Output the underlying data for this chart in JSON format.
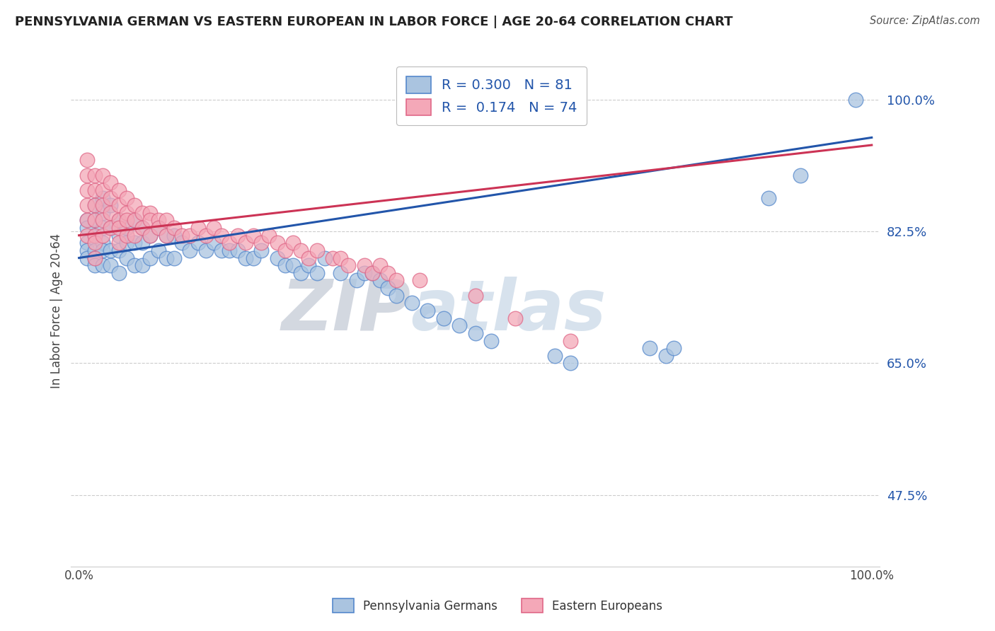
{
  "title": "PENNSYLVANIA GERMAN VS EASTERN EUROPEAN IN LABOR FORCE | AGE 20-64 CORRELATION CHART",
  "source": "Source: ZipAtlas.com",
  "ylabel": "In Labor Force | Age 20-64",
  "blue_R": 0.3,
  "blue_N": 81,
  "pink_R": 0.174,
  "pink_N": 74,
  "blue_fill": "#aac4e0",
  "pink_fill": "#f4a8b8",
  "blue_edge": "#5588cc",
  "pink_edge": "#e06888",
  "blue_line_color": "#2255aa",
  "pink_line_color": "#cc3355",
  "legend_blue_label": "Pennsylvania Germans",
  "legend_pink_label": "Eastern Europeans",
  "background_color": "#ffffff",
  "grid_color": "#cccccc",
  "watermark_zip": "ZIP",
  "watermark_atlas": "atlas",
  "title_color": "#222222",
  "source_color": "#555555",
  "axis_label_color": "#444444",
  "right_tick_color": "#2255aa",
  "ytick_vals": [
    0.475,
    0.65,
    0.825,
    1.0
  ],
  "ytick_labels": [
    "47.5%",
    "65.0%",
    "82.5%",
    "100.0%"
  ],
  "ylim_low": 0.38,
  "ylim_high": 1.06,
  "xlim_low": -0.01,
  "xlim_high": 1.01,
  "blue_trend_x0": 0.0,
  "blue_trend_x1": 1.0,
  "blue_trend_y0": 0.79,
  "blue_trend_y1": 0.95,
  "pink_trend_x0": 0.0,
  "pink_trend_x1": 1.0,
  "pink_trend_y0": 0.82,
  "pink_trend_y1": 0.94,
  "blue_x": [
    0.01,
    0.01,
    0.01,
    0.01,
    0.01,
    0.02,
    0.02,
    0.02,
    0.02,
    0.02,
    0.02,
    0.03,
    0.03,
    0.03,
    0.03,
    0.03,
    0.03,
    0.04,
    0.04,
    0.04,
    0.04,
    0.05,
    0.05,
    0.05,
    0.05,
    0.06,
    0.06,
    0.06,
    0.07,
    0.07,
    0.07,
    0.08,
    0.08,
    0.08,
    0.09,
    0.09,
    0.1,
    0.1,
    0.11,
    0.11,
    0.12,
    0.12,
    0.13,
    0.14,
    0.15,
    0.16,
    0.17,
    0.18,
    0.19,
    0.2,
    0.21,
    0.22,
    0.23,
    0.25,
    0.26,
    0.27,
    0.28,
    0.29,
    0.3,
    0.31,
    0.33,
    0.35,
    0.36,
    0.37,
    0.38,
    0.39,
    0.4,
    0.42,
    0.44,
    0.46,
    0.48,
    0.5,
    0.52,
    0.6,
    0.62,
    0.72,
    0.74,
    0.75,
    0.87,
    0.91,
    0.98
  ],
  "blue_y": [
    0.84,
    0.83,
    0.81,
    0.8,
    0.79,
    0.86,
    0.84,
    0.82,
    0.8,
    0.79,
    0.78,
    0.87,
    0.85,
    0.83,
    0.81,
    0.8,
    0.78,
    0.86,
    0.83,
    0.8,
    0.78,
    0.84,
    0.82,
    0.8,
    0.77,
    0.83,
    0.81,
    0.79,
    0.84,
    0.81,
    0.78,
    0.83,
    0.81,
    0.78,
    0.82,
    0.79,
    0.83,
    0.8,
    0.82,
    0.79,
    0.82,
    0.79,
    0.81,
    0.8,
    0.81,
    0.8,
    0.81,
    0.8,
    0.8,
    0.8,
    0.79,
    0.79,
    0.8,
    0.79,
    0.78,
    0.78,
    0.77,
    0.78,
    0.77,
    0.79,
    0.77,
    0.76,
    0.77,
    0.77,
    0.76,
    0.75,
    0.74,
    0.73,
    0.72,
    0.71,
    0.7,
    0.69,
    0.68,
    0.66,
    0.65,
    0.67,
    0.66,
    0.67,
    0.87,
    0.9,
    1.0
  ],
  "pink_x": [
    0.01,
    0.01,
    0.01,
    0.01,
    0.01,
    0.01,
    0.02,
    0.02,
    0.02,
    0.02,
    0.02,
    0.02,
    0.02,
    0.03,
    0.03,
    0.03,
    0.03,
    0.03,
    0.04,
    0.04,
    0.04,
    0.04,
    0.05,
    0.05,
    0.05,
    0.05,
    0.05,
    0.06,
    0.06,
    0.06,
    0.06,
    0.07,
    0.07,
    0.07,
    0.08,
    0.08,
    0.09,
    0.09,
    0.09,
    0.1,
    0.1,
    0.11,
    0.11,
    0.12,
    0.13,
    0.14,
    0.15,
    0.16,
    0.17,
    0.18,
    0.19,
    0.2,
    0.21,
    0.22,
    0.23,
    0.24,
    0.25,
    0.26,
    0.27,
    0.28,
    0.29,
    0.3,
    0.32,
    0.33,
    0.34,
    0.36,
    0.37,
    0.38,
    0.39,
    0.4,
    0.43,
    0.5,
    0.55,
    0.62
  ],
  "pink_y": [
    0.92,
    0.9,
    0.88,
    0.86,
    0.84,
    0.82,
    0.9,
    0.88,
    0.86,
    0.84,
    0.82,
    0.81,
    0.79,
    0.9,
    0.88,
    0.86,
    0.84,
    0.82,
    0.89,
    0.87,
    0.85,
    0.83,
    0.88,
    0.86,
    0.84,
    0.83,
    0.81,
    0.87,
    0.85,
    0.84,
    0.82,
    0.86,
    0.84,
    0.82,
    0.85,
    0.83,
    0.85,
    0.84,
    0.82,
    0.84,
    0.83,
    0.84,
    0.82,
    0.83,
    0.82,
    0.82,
    0.83,
    0.82,
    0.83,
    0.82,
    0.81,
    0.82,
    0.81,
    0.82,
    0.81,
    0.82,
    0.81,
    0.8,
    0.81,
    0.8,
    0.79,
    0.8,
    0.79,
    0.79,
    0.78,
    0.78,
    0.77,
    0.78,
    0.77,
    0.76,
    0.76,
    0.74,
    0.71,
    0.68
  ]
}
